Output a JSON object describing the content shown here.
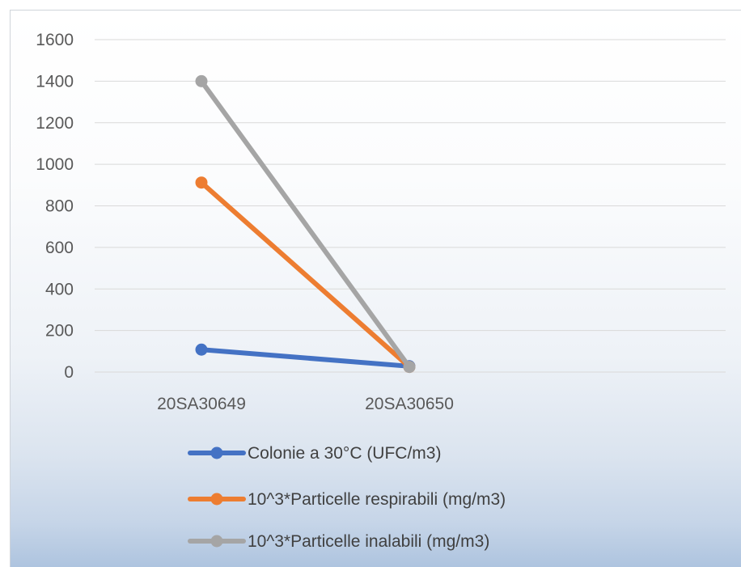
{
  "chart_data": {
    "type": "line",
    "categories": [
      "20SA30649",
      "20SA30650"
    ],
    "ylim": [
      0,
      1600
    ],
    "yticks": [
      0,
      200,
      400,
      600,
      800,
      1000,
      1200,
      1400,
      1600
    ],
    "grid": true,
    "legend_position": "bottom",
    "series": [
      {
        "name": "Colonie a 30°C (UFC/m3)",
        "color": "#4472C4",
        "values": [
          108,
          28
        ]
      },
      {
        "name": "10^3*Particelle respirabili (mg/m3)",
        "color": "#ED7D31",
        "values": [
          912,
          25
        ]
      },
      {
        "name": "10^3*Particelle inalabili (mg/m3)",
        "color": "#A5A5A5",
        "values": [
          1400,
          25
        ]
      }
    ]
  }
}
